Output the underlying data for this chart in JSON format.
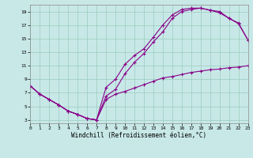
{
  "xlabel": "Windchill (Refroidissement éolien,°C)",
  "bg_color": "#c8e8e8",
  "line_color": "#880088",
  "xlim": [
    0,
    23
  ],
  "ylim": [
    2.5,
    20
  ],
  "xticks": [
    0,
    1,
    2,
    3,
    4,
    5,
    6,
    7,
    8,
    9,
    10,
    11,
    12,
    13,
    14,
    15,
    16,
    17,
    18,
    19,
    20,
    21,
    22,
    23
  ],
  "yticks": [
    3,
    5,
    7,
    9,
    11,
    13,
    15,
    17,
    19
  ],
  "line1_x": [
    0,
    1,
    2,
    3,
    4,
    5,
    6,
    7,
    8,
    9,
    10,
    11,
    12,
    13,
    14,
    15,
    16,
    17,
    18,
    19,
    20,
    21,
    22,
    23
  ],
  "line1_y": [
    8.0,
    6.8,
    6.0,
    5.2,
    4.3,
    3.8,
    3.2,
    3.0,
    7.8,
    9.0,
    11.2,
    12.5,
    13.5,
    15.2,
    17.0,
    18.5,
    19.3,
    19.5,
    19.5,
    19.2,
    19.0,
    18.0,
    17.3,
    14.8
  ],
  "line2_x": [
    0,
    1,
    2,
    3,
    4,
    5,
    6,
    7,
    8,
    9,
    10,
    11,
    12,
    13,
    14,
    15,
    16,
    17,
    18,
    19,
    20,
    21,
    22,
    23
  ],
  "line2_y": [
    8.0,
    6.8,
    6.0,
    5.2,
    4.3,
    3.8,
    3.2,
    3.0,
    6.5,
    7.5,
    9.8,
    11.5,
    12.8,
    14.5,
    16.0,
    18.0,
    19.0,
    19.3,
    19.5,
    19.2,
    18.8,
    18.0,
    17.2,
    14.8
  ],
  "line3_x": [
    0,
    1,
    2,
    3,
    4,
    5,
    6,
    7,
    8,
    9,
    10,
    11,
    12,
    13,
    14,
    15,
    16,
    17,
    18,
    19,
    20,
    21,
    22,
    23
  ],
  "line3_y": [
    8.0,
    6.8,
    6.0,
    5.2,
    4.3,
    3.8,
    3.2,
    3.0,
    6.0,
    6.8,
    7.2,
    7.7,
    8.2,
    8.7,
    9.2,
    9.4,
    9.7,
    10.0,
    10.2,
    10.4,
    10.5,
    10.7,
    10.8,
    11.0
  ],
  "grid_color": "#99ccbb",
  "tick_fontsize": 4.5,
  "xlabel_fontsize": 5.5
}
